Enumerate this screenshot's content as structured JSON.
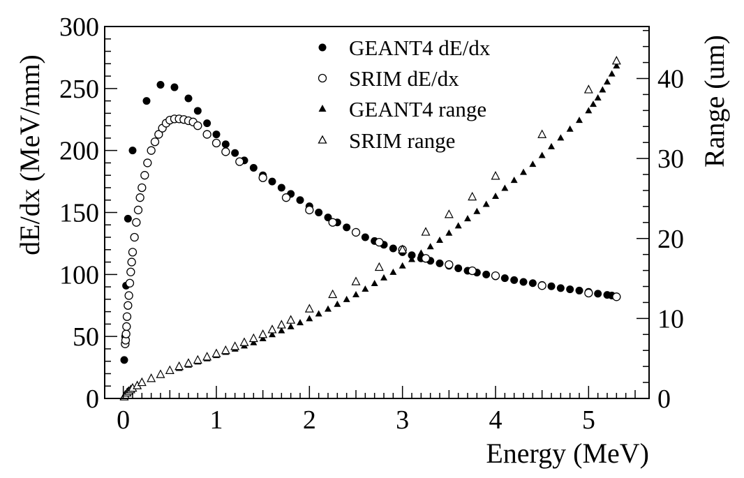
{
  "chart_data": {
    "type": "scatter",
    "title": "",
    "xlabel": "Energy (MeV)",
    "ylabel": "dE/dx (MeV/mm)",
    "y2label": "Range (um)",
    "xlim": [
      -0.2,
      5.65
    ],
    "ylim": [
      0,
      300
    ],
    "y2lim": [
      0,
      46.5
    ],
    "x_ticks": [
      "0",
      "1",
      "2",
      "3",
      "4",
      "5"
    ],
    "y_ticks": [
      "0",
      "50",
      "100",
      "150",
      "200",
      "250",
      "300"
    ],
    "y2_ticks": [
      "0",
      "10",
      "20",
      "30",
      "40"
    ],
    "legend_position": "top-center",
    "grid": false,
    "colors": {
      "marker": "#000000",
      "axis": "#000000",
      "background": "#ffffff"
    },
    "series": [
      {
        "name": "GEANT4 dE/dx",
        "axis": "left",
        "marker": "filled-circle",
        "points": [
          [
            0.01,
            31
          ],
          [
            0.02,
            50
          ],
          [
            0.03,
            91
          ],
          [
            0.05,
            145
          ],
          [
            0.1,
            200
          ],
          [
            0.25,
            240
          ],
          [
            0.4,
            253
          ],
          [
            0.55,
            251
          ],
          [
            0.7,
            242
          ],
          [
            0.8,
            232
          ],
          [
            0.9,
            222
          ],
          [
            1.0,
            213
          ],
          [
            1.1,
            205
          ],
          [
            1.2,
            198
          ],
          [
            1.3,
            192
          ],
          [
            1.4,
            186
          ],
          [
            1.5,
            180
          ],
          [
            1.6,
            175
          ],
          [
            1.7,
            170
          ],
          [
            1.8,
            165
          ],
          [
            1.9,
            160
          ],
          [
            2.0,
            155
          ],
          [
            2.1,
            150
          ],
          [
            2.2,
            146
          ],
          [
            2.3,
            142
          ],
          [
            2.4,
            138
          ],
          [
            2.5,
            134
          ],
          [
            2.6,
            130
          ],
          [
            2.7,
            127
          ],
          [
            2.8,
            124
          ],
          [
            2.9,
            121
          ],
          [
            3.0,
            118
          ],
          [
            3.1,
            115.5
          ],
          [
            3.2,
            113
          ],
          [
            3.3,
            111
          ],
          [
            3.4,
            109
          ],
          [
            3.5,
            107
          ],
          [
            3.6,
            105
          ],
          [
            3.7,
            103
          ],
          [
            3.8,
            101.5
          ],
          [
            3.9,
            100
          ],
          [
            4.0,
            98.5
          ],
          [
            4.1,
            97
          ],
          [
            4.2,
            95.5
          ],
          [
            4.3,
            94
          ],
          [
            4.4,
            93
          ],
          [
            4.5,
            91.5
          ],
          [
            4.6,
            90.5
          ],
          [
            4.7,
            89
          ],
          [
            4.8,
            88
          ],
          [
            4.9,
            87
          ],
          [
            5.0,
            86
          ],
          [
            5.1,
            84.5
          ],
          [
            5.2,
            83.5
          ],
          [
            5.25,
            83
          ]
        ]
      },
      {
        "name": "SRIM dE/dx",
        "axis": "left",
        "marker": "open-circle",
        "points": [
          [
            0.02,
            44
          ],
          [
            0.025,
            47
          ],
          [
            0.03,
            52
          ],
          [
            0.035,
            58
          ],
          [
            0.04,
            66
          ],
          [
            0.05,
            75
          ],
          [
            0.06,
            83
          ],
          [
            0.07,
            93
          ],
          [
            0.08,
            102
          ],
          [
            0.09,
            110
          ],
          [
            0.1,
            118
          ],
          [
            0.12,
            130
          ],
          [
            0.14,
            142
          ],
          [
            0.16,
            152
          ],
          [
            0.18,
            162
          ],
          [
            0.2,
            170
          ],
          [
            0.23,
            180
          ],
          [
            0.26,
            190
          ],
          [
            0.3,
            200
          ],
          [
            0.34,
            207
          ],
          [
            0.38,
            213
          ],
          [
            0.42,
            218
          ],
          [
            0.46,
            222
          ],
          [
            0.5,
            224.5
          ],
          [
            0.55,
            225.5
          ],
          [
            0.6,
            225.5
          ],
          [
            0.65,
            225
          ],
          [
            0.7,
            224
          ],
          [
            0.75,
            223
          ],
          [
            0.8,
            220
          ],
          [
            0.9,
            213
          ],
          [
            1.0,
            206
          ],
          [
            1.1,
            199
          ],
          [
            1.25,
            191
          ],
          [
            1.5,
            178
          ],
          [
            1.75,
            162
          ],
          [
            2.0,
            152
          ],
          [
            2.25,
            142
          ],
          [
            2.5,
            134
          ],
          [
            2.75,
            126
          ],
          [
            3.0,
            120
          ],
          [
            3.25,
            113
          ],
          [
            3.5,
            108
          ],
          [
            3.75,
            103
          ],
          [
            4.0,
            99
          ],
          [
            4.5,
            91
          ],
          [
            5.0,
            85
          ],
          [
            5.3,
            82
          ]
        ]
      },
      {
        "name": "GEANT4 range",
        "axis": "right",
        "marker": "filled-triangle",
        "points": [
          [
            0.0,
            0.2
          ],
          [
            0.02,
            0.6
          ],
          [
            0.05,
            1.0
          ],
          [
            0.1,
            1.4
          ],
          [
            0.15,
            1.7
          ],
          [
            0.2,
            2.0
          ],
          [
            0.3,
            2.5
          ],
          [
            0.4,
            3.0
          ],
          [
            0.5,
            3.4
          ],
          [
            0.6,
            3.8
          ],
          [
            0.7,
            4.2
          ],
          [
            0.8,
            4.6
          ],
          [
            0.9,
            5.0
          ],
          [
            1.0,
            5.4
          ],
          [
            1.1,
            5.8
          ],
          [
            1.2,
            6.2
          ],
          [
            1.3,
            6.6
          ],
          [
            1.4,
            7.0
          ],
          [
            1.5,
            7.5
          ],
          [
            1.6,
            8.0
          ],
          [
            1.7,
            8.5
          ],
          [
            1.8,
            9.0
          ],
          [
            1.9,
            9.5
          ],
          [
            2.0,
            10.0
          ],
          [
            2.1,
            10.6
          ],
          [
            2.2,
            11.2
          ],
          [
            2.3,
            11.8
          ],
          [
            2.4,
            12.4
          ],
          [
            2.5,
            13.0
          ],
          [
            2.6,
            13.7
          ],
          [
            2.7,
            14.4
          ],
          [
            2.8,
            15.1
          ],
          [
            2.9,
            15.8
          ],
          [
            3.0,
            16.6
          ],
          [
            3.1,
            17.4
          ],
          [
            3.2,
            18.2
          ],
          [
            3.3,
            19.0
          ],
          [
            3.4,
            19.8
          ],
          [
            3.5,
            20.7
          ],
          [
            3.6,
            21.6
          ],
          [
            3.7,
            22.5
          ],
          [
            3.8,
            23.4
          ],
          [
            3.9,
            24.3
          ],
          [
            4.0,
            25.3
          ],
          [
            4.1,
            26.3
          ],
          [
            4.2,
            27.3
          ],
          [
            4.3,
            28.3
          ],
          [
            4.4,
            29.3
          ],
          [
            4.5,
            30.4
          ],
          [
            4.6,
            31.5
          ],
          [
            4.7,
            32.6
          ],
          [
            4.8,
            33.7
          ],
          [
            4.9,
            34.8
          ],
          [
            5.0,
            36.0
          ],
          [
            5.05,
            36.8
          ],
          [
            5.1,
            37.6
          ],
          [
            5.15,
            38.6
          ],
          [
            5.2,
            39.6
          ],
          [
            5.25,
            40.6
          ],
          [
            5.3,
            41.6
          ]
        ]
      },
      {
        "name": "SRIM range",
        "axis": "right",
        "marker": "open-triangle",
        "points": [
          [
            0.01,
            0.2
          ],
          [
            0.02,
            0.4
          ],
          [
            0.04,
            0.7
          ],
          [
            0.06,
            0.9
          ],
          [
            0.08,
            1.1
          ],
          [
            0.1,
            1.3
          ],
          [
            0.15,
            1.6
          ],
          [
            0.2,
            2.0
          ],
          [
            0.3,
            2.5
          ],
          [
            0.4,
            3.0
          ],
          [
            0.5,
            3.5
          ],
          [
            0.6,
            4.0
          ],
          [
            0.7,
            4.4
          ],
          [
            0.8,
            4.8
          ],
          [
            0.9,
            5.2
          ],
          [
            1.0,
            5.6
          ],
          [
            1.1,
            6.0
          ],
          [
            1.2,
            6.5
          ],
          [
            1.3,
            7.0
          ],
          [
            1.4,
            7.5
          ],
          [
            1.5,
            8.0
          ],
          [
            1.6,
            8.6
          ],
          [
            1.7,
            9.2
          ],
          [
            1.8,
            9.8
          ],
          [
            2.0,
            11.2
          ],
          [
            2.25,
            13.0
          ],
          [
            2.5,
            14.6
          ],
          [
            2.75,
            16.4
          ],
          [
            3.0,
            18.6
          ],
          [
            3.25,
            20.8
          ],
          [
            3.5,
            23.0
          ],
          [
            3.75,
            25.2
          ],
          [
            4.0,
            27.8
          ],
          [
            4.5,
            33.0
          ],
          [
            5.0,
            38.6
          ],
          [
            5.3,
            42.2
          ]
        ]
      }
    ]
  }
}
